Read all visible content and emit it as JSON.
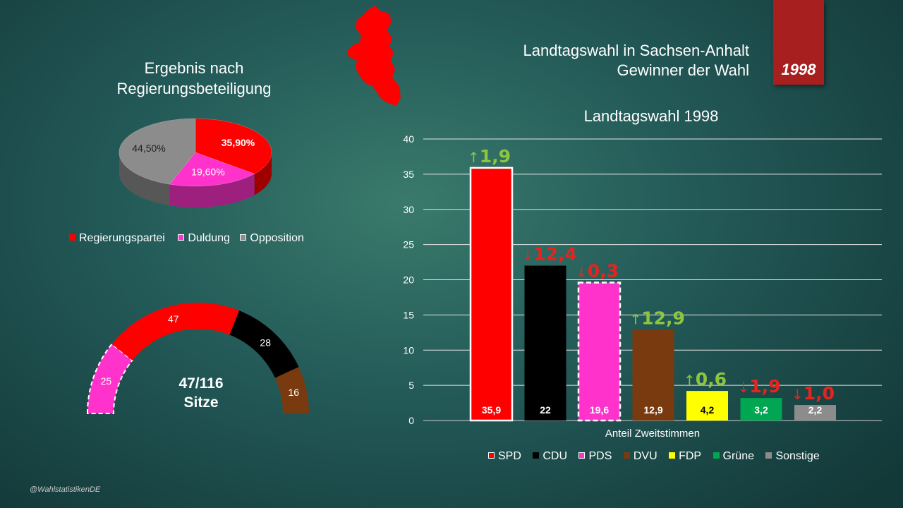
{
  "header": {
    "title_line1": "Landtagswahl in Sachsen-Anhalt",
    "title_line2": "Gewinner der Wahl",
    "year": "1998"
  },
  "map": {
    "icon": "sachsen-anhalt-map-icon",
    "color": "#ff0000"
  },
  "pie": {
    "title_line1": "Ergebnis nach",
    "title_line2": "Regierungsbeteiligung",
    "legend": [
      "Regierungspartei",
      "Duldung",
      "Opposition"
    ]
  },
  "seats": {
    "center_line1": "47/116",
    "center_line2": "Sitze"
  },
  "bars": {
    "title": "Landtagswahl 1998",
    "xlabel": "Anteil Zweitstimmen",
    "changes": [
      "1,9",
      "12,4",
      "0,3",
      "12,9",
      "0,6",
      "1,9",
      "1,0"
    ],
    "change_dirs": [
      "up",
      "down",
      "down",
      "up",
      "up",
      "down",
      "down"
    ]
  },
  "credit": "@WahlstatistikenDE",
  "chart_data": [
    {
      "type": "pie",
      "labels": [
        "Regierungspartei",
        "Duldung",
        "Opposition"
      ],
      "values": [
        35.9,
        19.6,
        44.5
      ],
      "value_labels": [
        "35,90%",
        "19,60%",
        "44,50%"
      ],
      "colors": [
        "#ff0000",
        "#ff33cc",
        "#8c8c8c"
      ],
      "legend": "bottom"
    },
    {
      "type": "pie",
      "subtype": "semicircle-seats",
      "labels": [
        "PDS",
        "SPD",
        "CDU",
        "DVU"
      ],
      "values": [
        25,
        47,
        28,
        16
      ],
      "value_labels": [
        "25",
        "47",
        "28",
        "16"
      ],
      "colors": [
        "#ff33cc",
        "#ff0000",
        "#000000",
        "#7a3a10"
      ]
    },
    {
      "type": "bar",
      "title": "Landtagswahl 1998",
      "categories": [
        "SPD",
        "CDU",
        "PDS",
        "DVU",
        "FDP",
        "Grüne",
        "Sonstige"
      ],
      "values": [
        35.9,
        22,
        19.6,
        12.9,
        4.2,
        3.2,
        2.2
      ],
      "value_labels": [
        "35,9",
        "22",
        "19,6",
        "12,9",
        "4,2",
        "3,2",
        "2,2"
      ],
      "colors": [
        "#ff0000",
        "#000000",
        "#ff33cc",
        "#7a3a10",
        "#ffff00",
        "#00a651",
        "#8c8c8c"
      ],
      "xlabel": "Anteil Zweitstimmen",
      "ylabel": "",
      "ylim": [
        0,
        40
      ],
      "yticks": [
        0,
        5,
        10,
        15,
        20,
        25,
        30,
        35,
        40
      ],
      "grid": true,
      "legend": "bottom"
    }
  ]
}
